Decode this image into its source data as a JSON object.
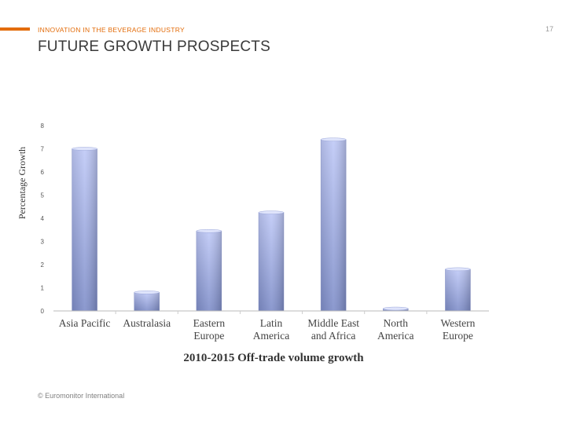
{
  "header": {
    "section_label": "INNOVATION IN THE BEVERAGE INDUSTRY",
    "page_number": "17",
    "title": "FUTURE GROWTH PROSPECTS"
  },
  "footer": {
    "copyright": "© Euromonitor International"
  },
  "colors": {
    "accent": "#e36c0a",
    "bar_top": "#b7c2f4",
    "bar_bottom": "#7f8ec9"
  },
  "chart_data": {
    "type": "bar",
    "title": "",
    "xlabel": "2010-2015 Off-trade volume growth",
    "ylabel": "Percentage Growth",
    "ylim": [
      0,
      8
    ],
    "yticks": [
      0,
      1,
      2,
      3,
      4,
      5,
      6,
      7,
      8
    ],
    "grid": false,
    "legend": "none",
    "categories": [
      [
        "Asia Pacific"
      ],
      [
        "Australasia"
      ],
      [
        "Eastern",
        "Europe"
      ],
      [
        "Latin",
        "America"
      ],
      [
        "Middle East",
        "and Africa"
      ],
      [
        "North",
        "America"
      ],
      [
        "Western",
        "Europe"
      ]
    ],
    "values": [
      7.0,
      0.8,
      3.45,
      4.25,
      7.4,
      0.1,
      1.8
    ]
  }
}
